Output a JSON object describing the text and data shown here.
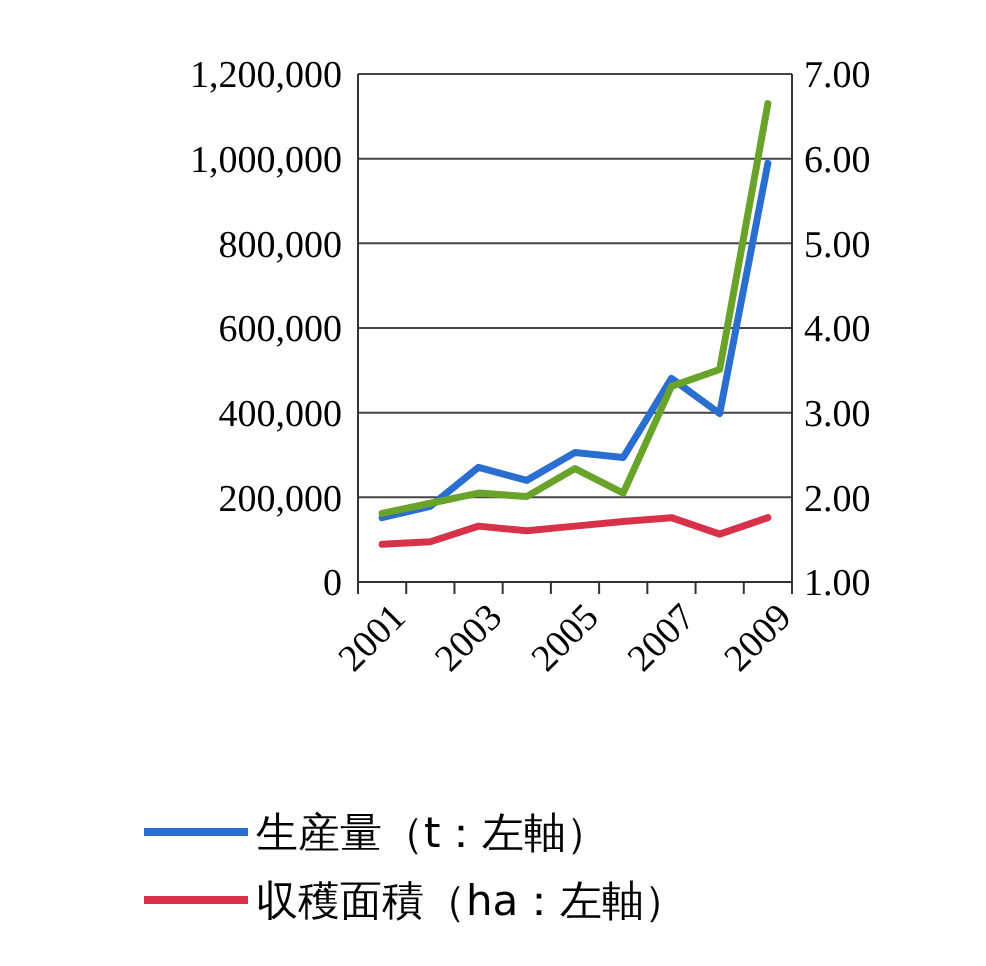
{
  "chart_data": {
    "type": "line",
    "categories": [
      "2001",
      null,
      "2003",
      null,
      "2005",
      null,
      "2007",
      null,
      "2009"
    ],
    "series": [
      {
        "name": "生産量（t：左軸）",
        "color": "#2a6fd0",
        "values": [
          152000,
          179000,
          271000,
          240000,
          306000,
          294000,
          481000,
          398000,
          989000
        ]
      },
      {
        "name": "収穫面積（ha：左軸）",
        "color": "#d8324a",
        "values": [
          89000,
          95000,
          132000,
          121000,
          132000,
          143000,
          152000,
          113000,
          152000
        ]
      },
      {
        "color": "#6aa32a",
        "axis": "y2",
        "values": [
          1.81,
          1.93,
          2.05,
          2.01,
          2.34,
          2.05,
          3.31,
          3.51,
          6.65
        ]
      }
    ],
    "ylim": [
      0,
      1200000
    ],
    "yticks": [
      {
        "value": 0,
        "label": "0"
      },
      {
        "value": 200000,
        "label": "200,000"
      },
      {
        "value": 400000,
        "label": "400,000"
      },
      {
        "value": 600000,
        "label": "600,000"
      },
      {
        "value": 800000,
        "label": "800,000"
      },
      {
        "value": 1000000,
        "label": "1,000,000"
      },
      {
        "value": 1200000,
        "label": "1,200,000"
      }
    ],
    "y2lim": [
      1,
      7
    ],
    "y2ticks": [
      {
        "value": 1,
        "label": "1.00"
      },
      {
        "value": 2,
        "label": "2.00"
      },
      {
        "value": 3,
        "label": "3.00"
      },
      {
        "value": 4,
        "label": "4.00"
      },
      {
        "value": 5,
        "label": "5.00"
      },
      {
        "value": 6,
        "label": "6.00"
      },
      {
        "value": 7,
        "label": "7.00"
      }
    ],
    "grid": "y",
    "legend": "bottom",
    "marker": "none",
    "line_style": "solid"
  }
}
